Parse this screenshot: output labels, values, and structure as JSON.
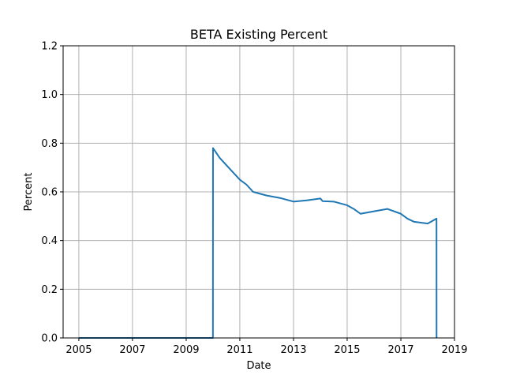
{
  "chart_data": {
    "type": "line",
    "title": "BETA Existing Percent",
    "xlabel": "Date",
    "ylabel": "Percent",
    "xlim": [
      "2004-06-01",
      "2019-01-01"
    ],
    "ylim": [
      0,
      1.2
    ],
    "grid": true,
    "x_ticks": [
      "2005",
      "2007",
      "2009",
      "2011",
      "2013",
      "2015",
      "2017",
      "2019"
    ],
    "y_ticks": [
      "0.0",
      "0.2",
      "0.4",
      "0.6",
      "0.8",
      "1.0",
      "1.2"
    ],
    "series_color": "#1f77b4",
    "series": [
      {
        "x": [
          "2005-01-01",
          "2009-12-31",
          "2010-01-01",
          "2010-04-01",
          "2010-07-01",
          "2010-10-01",
          "2011-01-01",
          "2011-04-01",
          "2011-07-01",
          "2012-01-01",
          "2012-07-01",
          "2013-01-01",
          "2013-07-01",
          "2014-01-01",
          "2014-02-01",
          "2014-07-01",
          "2015-01-01",
          "2015-04-01",
          "2015-07-01",
          "2016-01-01",
          "2016-07-01",
          "2017-01-01",
          "2017-04-01",
          "2017-07-01",
          "2018-01-01",
          "2018-05-01",
          "2018-05-02"
        ],
        "values": [
          0.0,
          0.0,
          0.78,
          0.74,
          0.71,
          0.68,
          0.65,
          0.63,
          0.6,
          0.585,
          0.575,
          0.56,
          0.565,
          0.573,
          0.562,
          0.56,
          0.545,
          0.53,
          0.51,
          0.52,
          0.53,
          0.51,
          0.49,
          0.477,
          0.47,
          0.49,
          0.0
        ]
      }
    ]
  }
}
